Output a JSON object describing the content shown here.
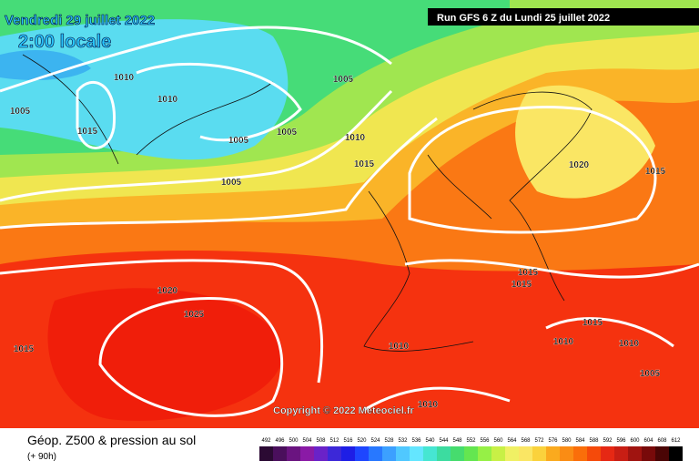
{
  "header": {
    "date": "Vendredi 29 juillet 2022",
    "time": "2:00 locale",
    "run": "Run GFS 6 Z du Lundi 25 juillet 2022"
  },
  "map": {
    "copyright": "Copyright © 2022 Meteociel.fr",
    "isobar_labels": [
      "1010",
      "1010",
      "1005",
      "1015",
      "1005",
      "1010",
      "1015",
      "1005",
      "1005",
      "1005",
      "1020",
      "1015",
      "1020",
      "1025",
      "1015",
      "1015",
      "1015",
      "1015",
      "1010",
      "1010",
      "1010",
      "1005",
      "1010"
    ]
  },
  "footer": {
    "title": "Géop. Z500 & pression au sol",
    "lead": "(+ 90h)"
  },
  "legend": {
    "values": [
      492,
      496,
      500,
      504,
      508,
      512,
      516,
      520,
      524,
      528,
      532,
      536,
      540,
      544,
      548,
      552,
      556,
      560,
      564,
      568,
      572,
      576,
      580,
      584,
      588,
      592,
      596,
      600,
      604,
      608,
      612
    ],
    "colors": [
      "#2b0a33",
      "#4a0f5c",
      "#6a1480",
      "#8a1aa6",
      "#6a22c8",
      "#3c28d8",
      "#1e1ee6",
      "#1e46ff",
      "#2878ff",
      "#3ca0ff",
      "#50c8ff",
      "#64e6ff",
      "#46e6d2",
      "#3cdca0",
      "#46dc6e",
      "#64e650",
      "#96f046",
      "#c8f046",
      "#f0f064",
      "#fae664",
      "#fad23c",
      "#faaa1e",
      "#fa8c14",
      "#fa6e0a",
      "#f54a0a",
      "#e62814",
      "#c81e14",
      "#a01410",
      "#780a0a",
      "#4a0505",
      "#000000"
    ]
  }
}
